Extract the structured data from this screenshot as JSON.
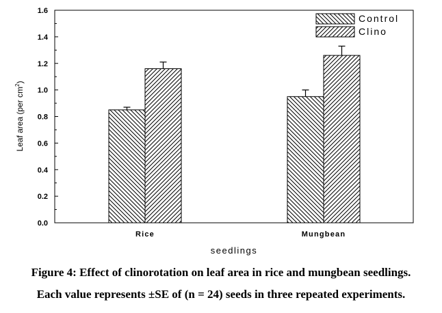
{
  "chart_data": {
    "type": "bar",
    "categories": [
      "Rice",
      "Mungbean"
    ],
    "series": [
      {
        "name": "Control",
        "values": [
          0.85,
          0.95
        ],
        "errors": [
          0.02,
          0.05
        ],
        "pattern": "back-diagonal-hatch"
      },
      {
        "name": "Clino",
        "values": [
          1.16,
          1.26
        ],
        "errors": [
          0.05,
          0.07
        ],
        "pattern": "diagonal-hatch"
      }
    ],
    "title": "",
    "xlabel": "seedlings",
    "ylabel": "Leaf area (per cm",
    "ylabel_superscript": "2",
    "ylabel_suffix": ")",
    "ylim": [
      0,
      1.6
    ],
    "yticks": [
      "0.0",
      "0.2",
      "0.4",
      "0.6",
      "0.8",
      "1.0",
      "1.2",
      "1.4",
      "1.6"
    ],
    "grid": false,
    "legend_position": "top-right"
  },
  "caption": {
    "line1": "Figure 4: Effect of clinorotation on leaf area in rice and mungbean seedlings.",
    "line2": "Each value represents ±SE of (n = 24) seeds in three repeated experiments."
  }
}
